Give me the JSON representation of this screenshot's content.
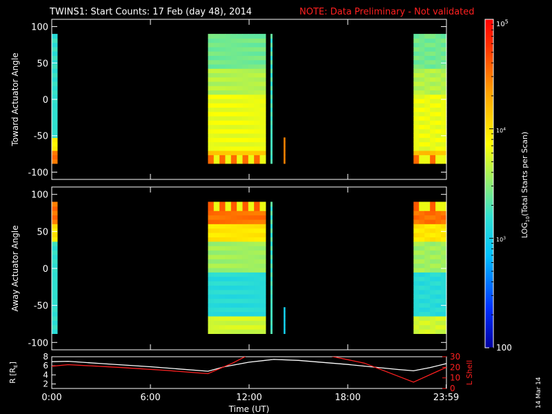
{
  "title": "TWINS1: Start Counts: 17 Feb (day  48), 2014",
  "note": "NOTE: Data Preliminary - Not validated",
  "date_stamp": "14 Mar 14",
  "colors": {
    "note": "#ff2020",
    "r_line": "#ffffff",
    "lshell_line": "#ff2020",
    "lshell_axis": "#ff2020"
  },
  "chart_data": [
    {
      "type": "heatmap",
      "ylabel": "Toward Actuator Angle",
      "ylim": [
        -110,
        110
      ],
      "yticks": [
        100,
        50,
        0,
        -50,
        -100
      ],
      "angle_range": [
        -88,
        90
      ],
      "xlim_hours": [
        0,
        24
      ],
      "data_intervals_hours": [
        {
          "start": 0.0,
          "end": 0.33,
          "profile": "toward_low"
        },
        {
          "start": 9.5,
          "end": 13.0,
          "profile": "toward_high"
        },
        {
          "start": 13.3,
          "end": 13.4,
          "profile": "spike"
        },
        {
          "start": 14.1,
          "end": 14.15,
          "profile": "spike_orange"
        },
        {
          "start": 22.0,
          "end": 24.0,
          "profile": "toward_high"
        }
      ]
    },
    {
      "type": "heatmap",
      "ylabel": "Away Actuator Angle",
      "ylim": [
        -110,
        110
      ],
      "yticks": [
        100,
        50,
        0,
        -50,
        -100
      ],
      "angle_range": [
        -88,
        90
      ],
      "xlim_hours": [
        0,
        24
      ],
      "data_intervals_hours": [
        {
          "start": 0.0,
          "end": 0.33,
          "profile": "away_low"
        },
        {
          "start": 9.5,
          "end": 13.0,
          "profile": "away_high"
        },
        {
          "start": 13.3,
          "end": 13.4,
          "profile": "spike"
        },
        {
          "start": 14.1,
          "end": 14.15,
          "profile": "spike_blue"
        },
        {
          "start": 22.0,
          "end": 24.0,
          "profile": "away_high"
        }
      ]
    },
    {
      "type": "line",
      "ylabel_left": "R [R",
      "ylabel_left_sub": "E",
      "ylabel_left_end": "]",
      "ylabel_right": "L Shell",
      "ylim_left": [
        1,
        8
      ],
      "yticks_left": [
        2,
        4,
        6,
        8
      ],
      "ylim_right": [
        0,
        30
      ],
      "yticks_right": [
        0,
        10,
        20,
        30
      ],
      "xlabel": "Time (UT)",
      "xticks_hours": [
        0,
        6,
        12,
        18,
        23.983
      ],
      "xtick_labels": [
        "0:00",
        "6:00",
        "12:00",
        "18:00",
        "23:59"
      ],
      "series": [
        {
          "axis": "left",
          "color": "#ffffff",
          "x": [
            0,
            1,
            3,
            6,
            9.5,
            10.5,
            12,
            13.5,
            15,
            18,
            21,
            22,
            23,
            24
          ],
          "y": [
            6.9,
            7.0,
            6.5,
            5.8,
            4.8,
            5.8,
            6.8,
            7.4,
            7.2,
            6.3,
            5.2,
            4.9,
            5.6,
            6.5
          ]
        },
        {
          "axis": "right",
          "color": "#ff2020",
          "x": [
            0,
            1,
            4,
            7,
            9.5,
            11,
            12,
            16.5,
            19,
            22,
            24
          ],
          "y": [
            21,
            22.5,
            20,
            17,
            14,
            24,
            32,
            32,
            24,
            6,
            20
          ]
        }
      ]
    }
  ],
  "colorbar": {
    "label_prefix": "LOG",
    "label_sub": "10",
    "label_suffix": "(Total Starts per Scan)",
    "range": [
      100,
      100000
    ],
    "tick_top": {
      "base": "10",
      "exp": "5"
    },
    "tick_mid": {
      "base": "10",
      "exp": "4"
    },
    "tick_low": {
      "base": "10",
      "exp": "3"
    },
    "tick_bottom": "100"
  }
}
